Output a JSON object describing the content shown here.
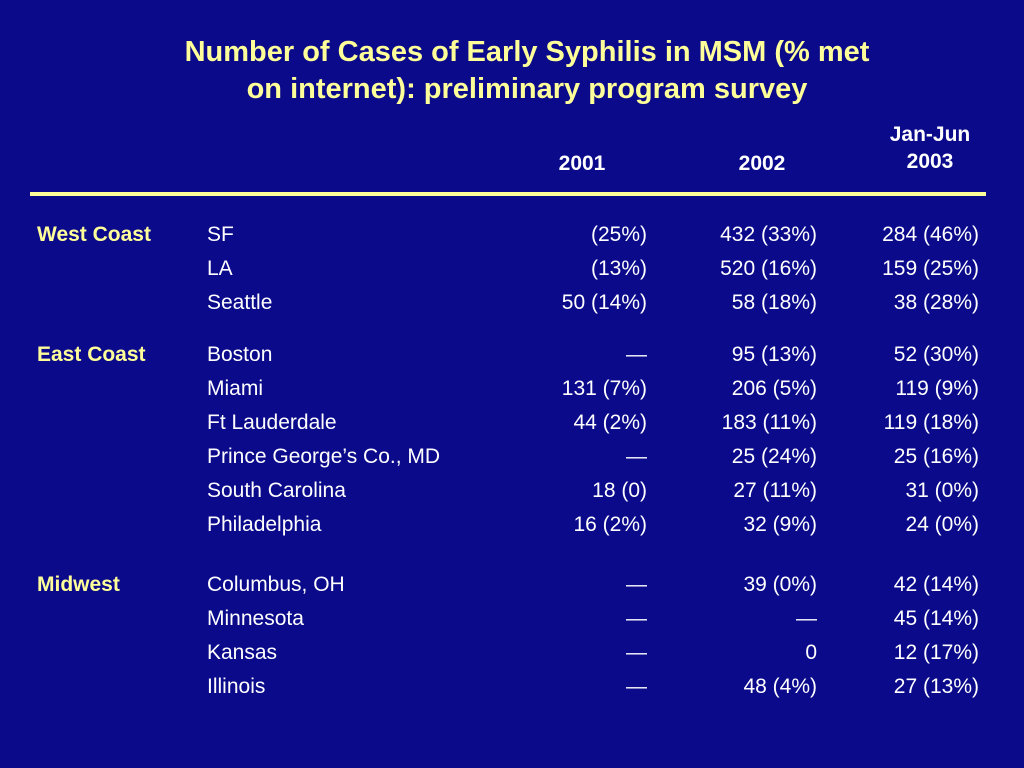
{
  "title": {
    "line1": "Number of Cases of Early Syphilis in MSM (% met",
    "line2": "on internet): preliminary program survey"
  },
  "colors": {
    "background": "#0a0a8a",
    "title": "#ffff99",
    "region": "#ffff99",
    "text": "#ffffff",
    "rule": "#ffff99"
  },
  "columns": {
    "c2001": "2001",
    "c2002": "2002",
    "c2003_line1": "Jan-Jun",
    "c2003_line2": "2003"
  },
  "rows": [
    {
      "region": "West Coast",
      "site": "SF",
      "c2001": "(25%)",
      "c2002": "432 (33%)",
      "c2003": "284 (46%)"
    },
    {
      "region": "",
      "site": "LA",
      "c2001": "(13%)",
      "c2002": "520 (16%)",
      "c2003": "159 (25%)"
    },
    {
      "region": "",
      "site": "Seattle",
      "c2001": "50 (14%)",
      "c2002": "58 (18%)",
      "c2003": "38 (28%)"
    },
    {
      "region": "East Coast",
      "site": "Boston",
      "c2001": "—",
      "c2002": "95 (13%)",
      "c2003": "52 (30%)"
    },
    {
      "region": "",
      "site": "Miami",
      "c2001": "131 (7%)",
      "c2002": "206 (5%)",
      "c2003": "119 (9%)"
    },
    {
      "region": "",
      "site": "Ft Lauderdale",
      "c2001": "44 (2%)",
      "c2002": "183 (11%)",
      "c2003": "119 (18%)"
    },
    {
      "region": "",
      "site": "Prince George’s Co., MD",
      "c2001": "—",
      "c2002": "25 (24%)",
      "c2003": "25 (16%)"
    },
    {
      "region": "",
      "site": "South Carolina",
      "c2001": "18 (0)",
      "c2002": "27 (11%)",
      "c2003": "31 (0%)"
    },
    {
      "region": "",
      "site": "Philadelphia",
      "c2001": "16 (2%)",
      "c2002": "32 (9%)",
      "c2003": "24 (0%)"
    },
    {
      "region": "Midwest",
      "site": "Columbus, OH",
      "c2001": "—",
      "c2002": "39 (0%)",
      "c2003": "42 (14%)"
    },
    {
      "region": "",
      "site": "Minnesota",
      "c2001": "—",
      "c2002": "—",
      "c2003": "45 (14%)"
    },
    {
      "region": "",
      "site": "Kansas",
      "c2001": "—",
      "c2002": "0",
      "c2003": "12 (17%)"
    },
    {
      "region": "",
      "site": "Illinois",
      "c2001": "—",
      "c2002": "48 (4%)",
      "c2003": "27 (13%)"
    }
  ]
}
